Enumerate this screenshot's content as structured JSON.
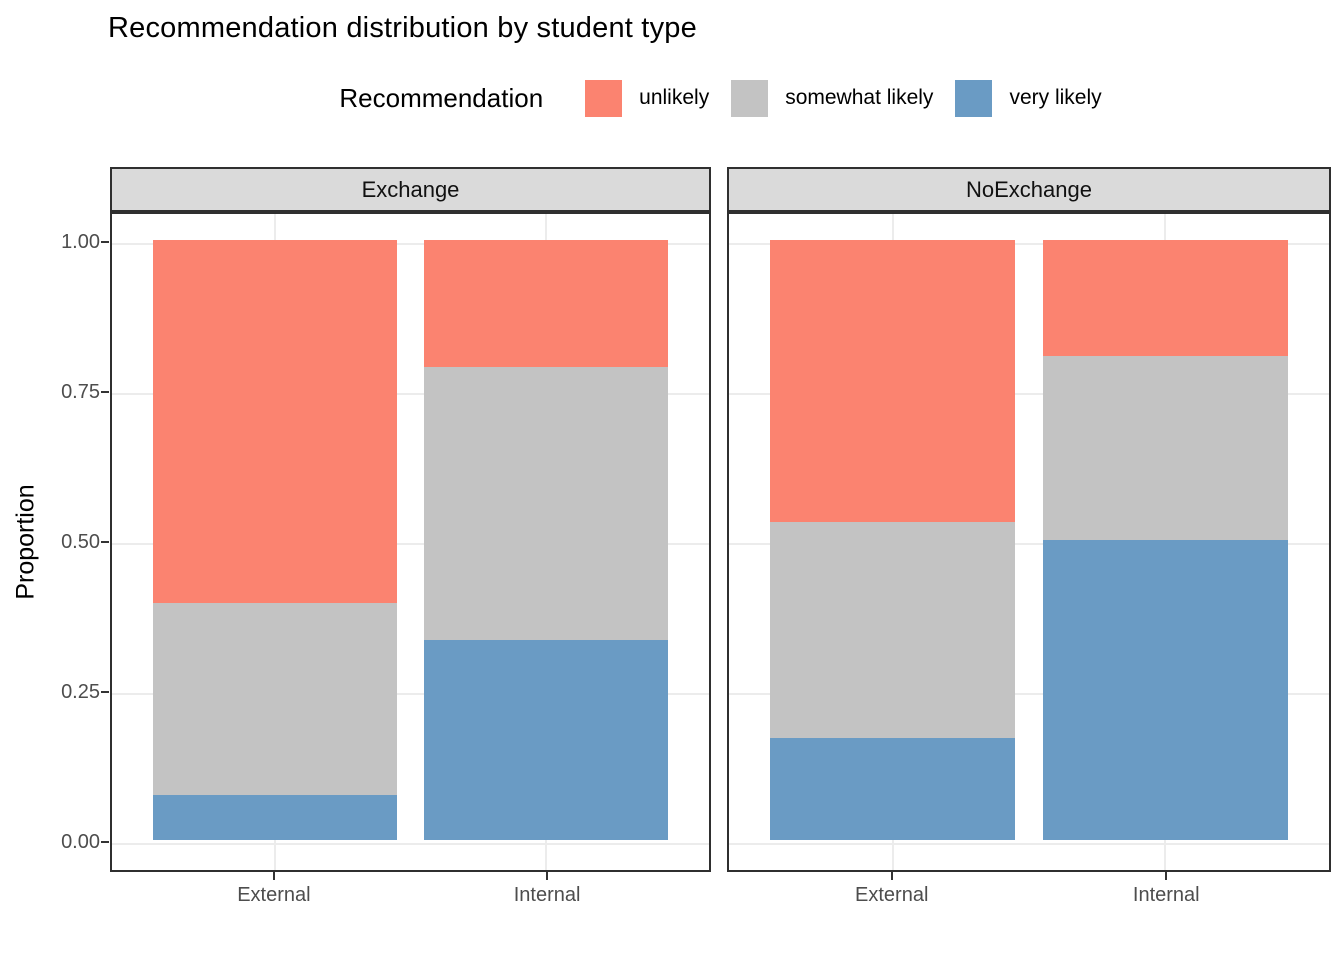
{
  "title": "Recommendation distribution by student type",
  "legend": {
    "title": "Recommendation",
    "items": [
      {
        "label": "unlikely",
        "color": "#FB8370"
      },
      {
        "label": "somewhat likely",
        "color": "#C3C3C3"
      },
      {
        "label": "very likely",
        "color": "#6A9BC4"
      }
    ]
  },
  "chart_data": {
    "type": "bar",
    "subtype": "stacked-proportion-faceted",
    "title": "Recommendation distribution by student type",
    "xlabel": "",
    "ylabel": "Proportion",
    "ylim": [
      0,
      1
    ],
    "y_ticks": [
      "0.00",
      "0.25",
      "0.50",
      "0.75",
      "1.00"
    ],
    "y_tick_values": [
      0,
      0.25,
      0.5,
      0.75,
      1.0
    ],
    "grid": "major horizontal lines at 0.25 steps, vertical lines at category centers",
    "legend_position": "top-center",
    "legend_title": "Recommendation",
    "stack_order_bottom_to_top": [
      "very likely",
      "somewhat likely",
      "unlikely"
    ],
    "colors": {
      "unlikely": "#FB8370",
      "somewhat likely": "#C3C3C3",
      "very likely": "#6A9BC4"
    },
    "facets": [
      {
        "name": "Exchange",
        "categories": [
          "External",
          "Internal"
        ],
        "series": [
          {
            "name": "unlikely",
            "values": [
              0.605,
              0.212
            ]
          },
          {
            "name": "somewhat likely",
            "values": [
              0.32,
              0.455
            ]
          },
          {
            "name": "very likely",
            "values": [
              0.075,
              0.333
            ]
          }
        ]
      },
      {
        "name": "NoExchange",
        "categories": [
          "External",
          "Internal"
        ],
        "series": [
          {
            "name": "unlikely",
            "values": [
              0.47,
              0.194
            ]
          },
          {
            "name": "somewhat likely",
            "values": [
              0.36,
              0.306
            ]
          },
          {
            "name": "very likely",
            "values": [
              0.17,
              0.5
            ]
          }
        ]
      }
    ]
  },
  "colors": {
    "background": "#FFFFFF",
    "strip_bg": "#DADADA",
    "panel_border": "#2F2F2F",
    "gridline": "#ECECEC",
    "axis_text": "#4D4D4D",
    "tick_mark": "#333333"
  }
}
